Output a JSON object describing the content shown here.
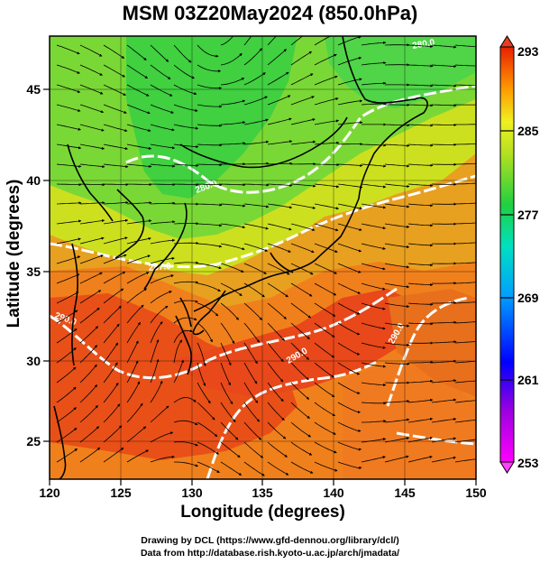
{
  "title": "MSM 03Z20May2024 (850.0hPa)",
  "xlabel": "Longitude (degrees)",
  "ylabel": "Latitude  (degrees)",
  "credits": {
    "line1": "Drawing by DCL (https://www.gfd-dennou.org/library/dcl/)",
    "line2": "Data from http://database.rish.kyoto-u.ac.jp/arch/jmadata/"
  },
  "map": {
    "lon_range": [
      120,
      150
    ],
    "lat_range": [
      22.4,
      47.6
    ],
    "lon_ticks": [
      120,
      125,
      130,
      135,
      140,
      145,
      150
    ],
    "lat_ticks": [
      25,
      30,
      35,
      40,
      45
    ],
    "lon_tick_labels": [
      "120",
      "125",
      "130",
      "135",
      "140",
      "145",
      "150"
    ],
    "lat_tick_labels": [
      "25",
      "30",
      "35",
      "40",
      "45"
    ]
  },
  "colorbar": {
    "ticks": [
      293,
      285,
      277,
      269,
      261,
      253
    ],
    "tick_labels": [
      "293",
      "285",
      "277",
      "269",
      "261",
      "253"
    ],
    "range": [
      253,
      293
    ]
  },
  "contour_labels": [
    "280.0",
    "280.0",
    "287.0",
    "290.0",
    "290.0",
    "290.0"
  ],
  "colors": {
    "warm": "#e83c00",
    "mid": "#e0e020",
    "cool": "#30d850",
    "coast": "#000000",
    "contour": "#ffffff"
  }
}
